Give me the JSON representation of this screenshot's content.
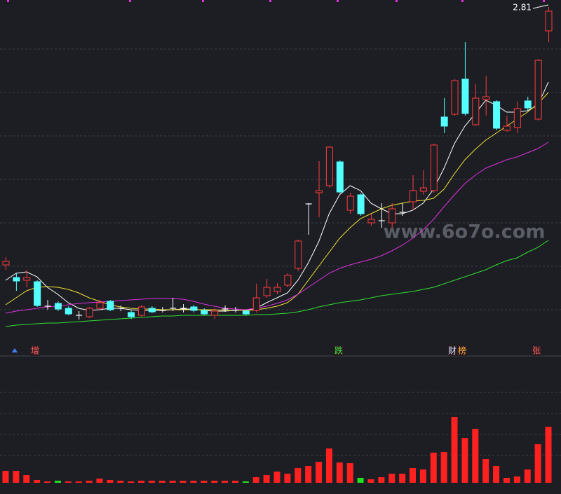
{
  "chart_data": {
    "type": "candlestick",
    "open": [
      1.338,
      1.266,
      1.25,
      1.242,
      1.102,
      1.118,
      1.09,
      1.05,
      1.042,
      1.09,
      1.13,
      1.09,
      1.066,
      1.05,
      1.09,
      1.078,
      1.09,
      1.09,
      1.098,
      1.078,
      1.05,
      1.086,
      1.078,
      1.074,
      1.078,
      1.162,
      1.186,
      1.222,
      1.318,
      1.686,
      1.75,
      1.79,
      1.926,
      1.65,
      1.738,
      1.578,
      1.59,
      1.578,
      1.638,
      1.698,
      1.758,
      1.762,
      2.182,
      2.198,
      2.398,
      2.138,
      2.282,
      2.27,
      2.106,
      2.122,
      2.274,
      2.17,
      2.674
    ],
    "close": [
      1.358,
      1.246,
      1.266,
      1.106,
      1.102,
      1.086,
      1.058,
      1.05,
      1.09,
      1.122,
      1.082,
      1.09,
      1.042,
      1.098,
      1.07,
      1.078,
      1.09,
      1.09,
      1.078,
      1.058,
      1.074,
      1.086,
      1.078,
      1.058,
      1.15,
      1.21,
      1.21,
      1.278,
      1.474,
      1.686,
      1.762,
      2.01,
      1.754,
      1.73,
      1.63,
      1.598,
      1.59,
      1.658,
      1.638,
      1.762,
      1.778,
      2.022,
      2.13,
      2.39,
      2.202,
      2.29,
      2.298,
      2.118,
      2.13,
      2.23,
      2.234,
      2.506,
      2.786
    ],
    "high": [
      1.382,
      1.29,
      1.31,
      1.25,
      1.138,
      1.13,
      1.102,
      1.074,
      1.098,
      1.138,
      1.138,
      1.106,
      1.078,
      1.11,
      1.102,
      1.098,
      1.15,
      1.114,
      1.11,
      1.09,
      1.09,
      1.106,
      1.098,
      1.082,
      1.23,
      1.258,
      1.234,
      1.29,
      1.482,
      1.69,
      1.93,
      2.018,
      1.934,
      1.75,
      1.746,
      1.63,
      1.69,
      1.69,
      1.69,
      1.85,
      1.878,
      2.03,
      2.29,
      2.398,
      2.61,
      2.37,
      2.418,
      2.278,
      2.19,
      2.27,
      2.298,
      2.514,
      2.81
    ],
    "low": [
      1.31,
      1.19,
      1.21,
      1.098,
      1.082,
      1.074,
      1.05,
      1.026,
      1.034,
      1.082,
      1.074,
      1.074,
      1.03,
      1.042,
      1.062,
      1.066,
      1.074,
      1.066,
      1.066,
      1.05,
      1.03,
      1.07,
      1.066,
      1.05,
      1.066,
      1.15,
      1.17,
      1.21,
      1.302,
      1.51,
      1.61,
      1.778,
      1.746,
      1.63,
      1.618,
      1.562,
      1.55,
      1.55,
      1.618,
      1.65,
      1.738,
      1.75,
      2.09,
      2.19,
      2.19,
      2.13,
      2.19,
      2.106,
      2.098,
      2.09,
      2.218,
      2.162,
      2.61
    ],
    "up_color": "#ff3b3b",
    "down_color": "#54ffff",
    "flat_color": "#ffffff",
    "lines": [
      {
        "color": "#ffffff",
        "values": [
          1.25,
          1.29,
          1.298,
          1.27,
          1.21,
          1.17,
          1.122,
          1.09,
          1.078,
          1.082,
          1.09,
          1.09,
          1.082,
          1.078,
          1.078,
          1.078,
          1.082,
          1.086,
          1.086,
          1.078,
          1.074,
          1.074,
          1.078,
          1.078,
          1.09,
          1.122,
          1.15,
          1.178,
          1.25,
          1.35,
          1.47,
          1.63,
          1.738,
          1.79,
          1.762,
          1.69,
          1.658,
          1.63,
          1.63,
          1.65,
          1.69,
          1.77,
          1.89,
          2.03,
          2.13,
          2.202,
          2.278,
          2.25,
          2.21,
          2.21,
          2.218,
          2.25,
          2.382
        ]
      },
      {
        "color": "#f0e030",
        "values": [
          1.11,
          1.15,
          1.19,
          1.21,
          1.214,
          1.21,
          1.198,
          1.178,
          1.15,
          1.13,
          1.11,
          1.098,
          1.09,
          1.086,
          1.086,
          1.082,
          1.082,
          1.082,
          1.082,
          1.082,
          1.082,
          1.078,
          1.078,
          1.078,
          1.082,
          1.09,
          1.102,
          1.122,
          1.17,
          1.25,
          1.33,
          1.41,
          1.49,
          1.55,
          1.602,
          1.63,
          1.658,
          1.678,
          1.69,
          1.702,
          1.706,
          1.718,
          1.77,
          1.858,
          1.938,
          1.998,
          2.05,
          2.09,
          2.13,
          2.17,
          2.21,
          2.258,
          2.322
        ]
      },
      {
        "color": "#e030e0",
        "values": [
          1.062,
          1.074,
          1.082,
          1.09,
          1.098,
          1.102,
          1.11,
          1.118,
          1.122,
          1.126,
          1.13,
          1.134,
          1.138,
          1.142,
          1.146,
          1.146,
          1.146,
          1.142,
          1.13,
          1.114,
          1.102,
          1.09,
          1.086,
          1.082,
          1.09,
          1.102,
          1.118,
          1.138,
          1.17,
          1.21,
          1.25,
          1.29,
          1.318,
          1.338,
          1.354,
          1.37,
          1.39,
          1.418,
          1.45,
          1.49,
          1.538,
          1.598,
          1.67,
          1.738,
          1.802,
          1.85,
          1.89,
          1.914,
          1.938,
          1.954,
          1.978,
          2.002,
          2.038
        ]
      },
      {
        "color": "#30e030",
        "values": [
          0.986,
          0.994,
          0.998,
          1.002,
          1.006,
          1.006,
          1.01,
          1.014,
          1.018,
          1.022,
          1.026,
          1.03,
          1.034,
          1.038,
          1.042,
          1.046,
          1.046,
          1.05,
          1.05,
          1.05,
          1.05,
          1.05,
          1.05,
          1.05,
          1.054,
          1.054,
          1.058,
          1.062,
          1.07,
          1.082,
          1.098,
          1.11,
          1.122,
          1.13,
          1.138,
          1.15,
          1.162,
          1.17,
          1.178,
          1.186,
          1.198,
          1.21,
          1.23,
          1.25,
          1.27,
          1.29,
          1.31,
          1.338,
          1.362,
          1.378,
          1.41,
          1.438,
          1.478
        ]
      }
    ],
    "ylim": [
      0.89,
      2.85
    ],
    "volume": [
      17,
      17,
      11,
      4,
      2,
      3,
      2,
      2,
      3,
      6,
      4,
      3,
      2,
      3,
      3,
      3,
      3,
      3,
      3,
      3,
      3,
      3,
      3,
      2,
      8,
      11,
      16,
      13,
      21,
      24,
      30,
      49,
      29,
      28,
      7,
      5,
      8,
      13,
      13,
      21,
      19,
      43,
      44,
      94,
      64,
      77,
      34,
      24,
      7,
      9,
      19,
      55,
      80
    ],
    "volume_colors": [
      "#ff2020",
      "#ff2020",
      "#ff2020",
      "#ff2020",
      "#ff2020",
      "#20e020",
      "#ff2020",
      "#ff2020",
      "#ff2020",
      "#ff2020",
      "#ff2020",
      "#ff2020",
      "#ff2020",
      "#ff2020",
      "#ff2020",
      "#ff2020",
      "#ff2020",
      "#ff2020",
      "#ff2020",
      "#ff2020",
      "#ff2020",
      "#ff2020",
      "#ff2020",
      "#20e020",
      "#ff2020",
      "#ff2020",
      "#ff2020",
      "#ff2020",
      "#ff2020",
      "#ff2020",
      "#ff2020",
      "#ff2020",
      "#ff2020",
      "#ff2020",
      "#20e020",
      "#ff2020",
      "#ff2020",
      "#ff2020",
      "#ff2020",
      "#ff2020",
      "#ff2020",
      "#ff2020",
      "#ff2020",
      "#ff2020",
      "#ff2020",
      "#ff2020",
      "#ff2020",
      "#ff2020",
      "#ff2020",
      "#ff2020",
      "#ff2020",
      "#ff2020",
      "#ff2020"
    ],
    "volume_ylim": [
      0,
      100
    ],
    "annotations": [
      {
        "text": "增",
        "color": "#ff6060"
      },
      {
        "text": "跌",
        "color": "#40e040"
      },
      {
        "text": "财",
        "color": "#d0e0ff"
      },
      {
        "text": "榜",
        "color": "#ffb040"
      },
      {
        "text": "张",
        "color": "#ff6060"
      }
    ],
    "watermark": "www.6o7o.com"
  }
}
